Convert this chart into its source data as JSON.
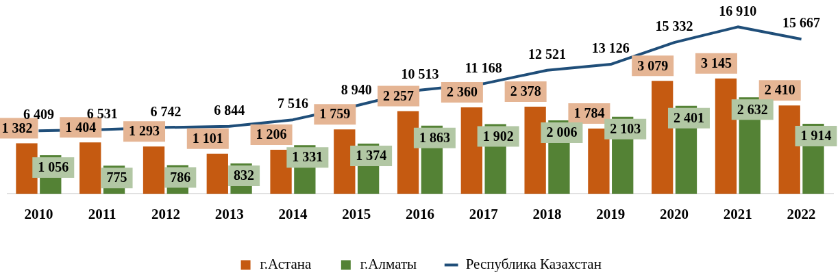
{
  "chart_data": {
    "type": "bar",
    "categories": [
      "2010",
      "2011",
      "2012",
      "2013",
      "2014",
      "2015",
      "2016",
      "2017",
      "2018",
      "2019",
      "2020",
      "2021",
      "2022"
    ],
    "series": [
      {
        "name": "г.Астана",
        "color": "#c55a11",
        "values": [
          1382,
          1404,
          1293,
          1101,
          1206,
          1759,
          2257,
          2360,
          2378,
          1784,
          3079,
          3145,
          2410
        ]
      },
      {
        "name": "г.Алматы",
        "color": "#548235",
        "values": [
          1056,
          775,
          786,
          832,
          1331,
          1374,
          1863,
          1902,
          2006,
          2103,
          2401,
          2632,
          1914
        ]
      },
      {
        "name": "Республика Казахстан",
        "type": "line",
        "axis": "y2",
        "color": "#1f4e79",
        "values": [
          6409,
          6531,
          6742,
          6844,
          7516,
          8940,
          10513,
          11168,
          12521,
          13126,
          15332,
          16910,
          15667
        ]
      }
    ],
    "data_labels": true,
    "legend": "bottom",
    "grid": false,
    "marker": "none"
  }
}
